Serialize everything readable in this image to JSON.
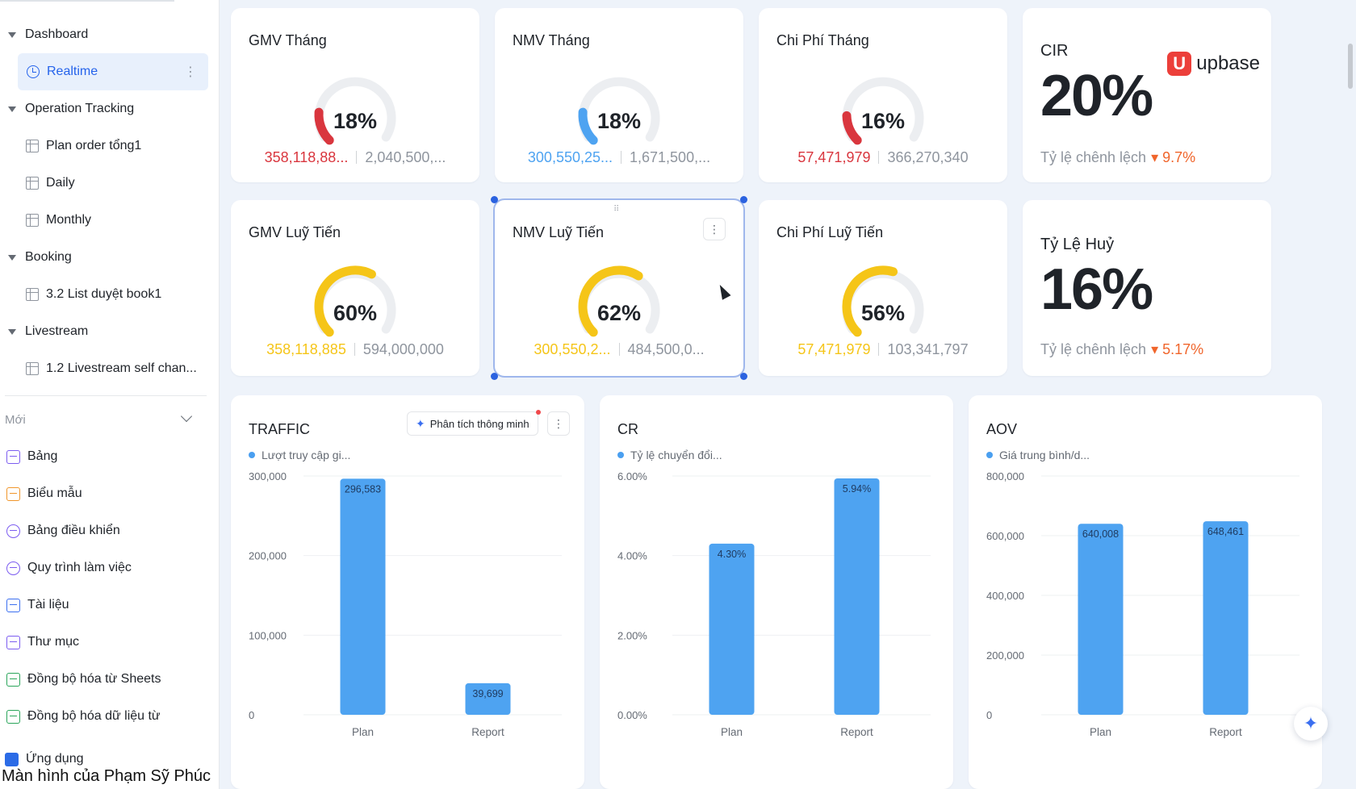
{
  "sidebar": {
    "groups": [
      {
        "label": "Dashboard"
      },
      {
        "label": "Operation Tracking"
      },
      {
        "label": "Booking"
      },
      {
        "label": "Livestream"
      }
    ],
    "items": [
      {
        "label": "Realtime"
      },
      {
        "label": "Plan order tổng1"
      },
      {
        "label": "Daily"
      },
      {
        "label": "Monthly"
      },
      {
        "label": "3.2 List duyệt book1"
      },
      {
        "label": "1.2 Livestream self chan..."
      }
    ],
    "new_section": {
      "label": "Mới"
    },
    "new_items": [
      {
        "label": "Bảng",
        "color": "#7c5cf0"
      },
      {
        "label": "Biểu mẫu",
        "color": "#f0962b"
      },
      {
        "label": "Bảng điều khiển",
        "color": "#7c5cf0"
      },
      {
        "label": "Quy trình làm việc",
        "color": "#7c5cf0"
      },
      {
        "label": "Tài liệu",
        "color": "#3b6ff0"
      },
      {
        "label": "Thư mục",
        "color": "#7c5cf0"
      },
      {
        "label": "Đồng bộ hóa từ Sheets",
        "color": "#2aa55a"
      },
      {
        "label": "Đồng bộ hóa dữ liệu từ",
        "color": "#2aa55a"
      }
    ],
    "app_item": {
      "label": "Ứng dụng"
    },
    "caption": "Màn hình của Phạm Sỹ Phúc"
  },
  "kpis": [
    {
      "title": "GMV Tháng",
      "percent": 18,
      "percent_label": "18%",
      "actual": "358,118,88...",
      "plan": "2,040,500,...",
      "color": "#d9363e"
    },
    {
      "title": "NMV Tháng",
      "percent": 18,
      "percent_label": "18%",
      "actual": "300,550,25...",
      "plan": "1,671,500,...",
      "color": "#4ea3f1"
    },
    {
      "title": "Chi Phí Tháng",
      "percent": 16,
      "percent_label": "16%",
      "actual": "57,471,979",
      "plan": "366,270,340",
      "color": "#d9363e"
    },
    {
      "title": "GMV Luỹ Tiến",
      "percent": 60,
      "percent_label": "60%",
      "actual": "358,118,885",
      "plan": "594,000,000",
      "color": "#f5c518"
    },
    {
      "title": "NMV Luỹ Tiến",
      "percent": 62,
      "percent_label": "62%",
      "actual": "300,550,2...",
      "plan": "484,500,0...",
      "color": "#f5c518"
    },
    {
      "title": "Chi Phí Luỹ Tiến",
      "percent": 56,
      "percent_label": "56%",
      "actual": "57,471,979",
      "plan": "103,341,797",
      "color": "#f5c518"
    }
  ],
  "cir": {
    "title": "CIR",
    "value": "20%",
    "sub_label": "Tỷ lệ chênh lệch",
    "delta": "9.7%"
  },
  "brand": {
    "name": "upbase",
    "logo_letter": "U"
  },
  "huy": {
    "title": "Tỷ Lệ Huỷ",
    "value": "16%",
    "sub_label": "Tỷ lệ chênh lệch",
    "delta": "5.17%"
  },
  "smart_button": {
    "label": "Phân tích thông minh"
  },
  "chart_data": [
    {
      "type": "bar",
      "title": "TRAFFIC",
      "legend": "Lượt truy cập gi...",
      "categories": [
        "Plan",
        "Report"
      ],
      "values": [
        296583,
        39699
      ],
      "value_labels": [
        "296,583",
        "39,699"
      ],
      "yticks": [
        "0",
        "100,000",
        "200,000",
        "300,000"
      ],
      "ytick_values": [
        0,
        100000,
        200000,
        300000
      ],
      "ylim": [
        0,
        300000
      ],
      "color": "#4ea3f1"
    },
    {
      "type": "bar",
      "title": "CR",
      "legend": "Tỷ lệ chuyển đổi...",
      "categories": [
        "Plan",
        "Report"
      ],
      "values": [
        4.3,
        5.94
      ],
      "value_labels": [
        "4.30%",
        "5.94%"
      ],
      "yticks": [
        "0.00%",
        "2.00%",
        "4.00%",
        "6.00%"
      ],
      "ytick_values": [
        0,
        2,
        4,
        6
      ],
      "ylim": [
        0,
        6
      ],
      "color": "#4ea3f1"
    },
    {
      "type": "bar",
      "title": "AOV",
      "legend": "Giá trung bình/d...",
      "categories": [
        "Plan",
        "Report"
      ],
      "values": [
        640008,
        648461
      ],
      "value_labels": [
        "640,008",
        "648,461"
      ],
      "yticks": [
        "0",
        "200,000",
        "400,000",
        "600,000",
        "800,000"
      ],
      "ytick_values": [
        0,
        200000,
        400000,
        600000,
        800000
      ],
      "ylim": [
        0,
        800000
      ],
      "color": "#4ea3f1"
    }
  ]
}
